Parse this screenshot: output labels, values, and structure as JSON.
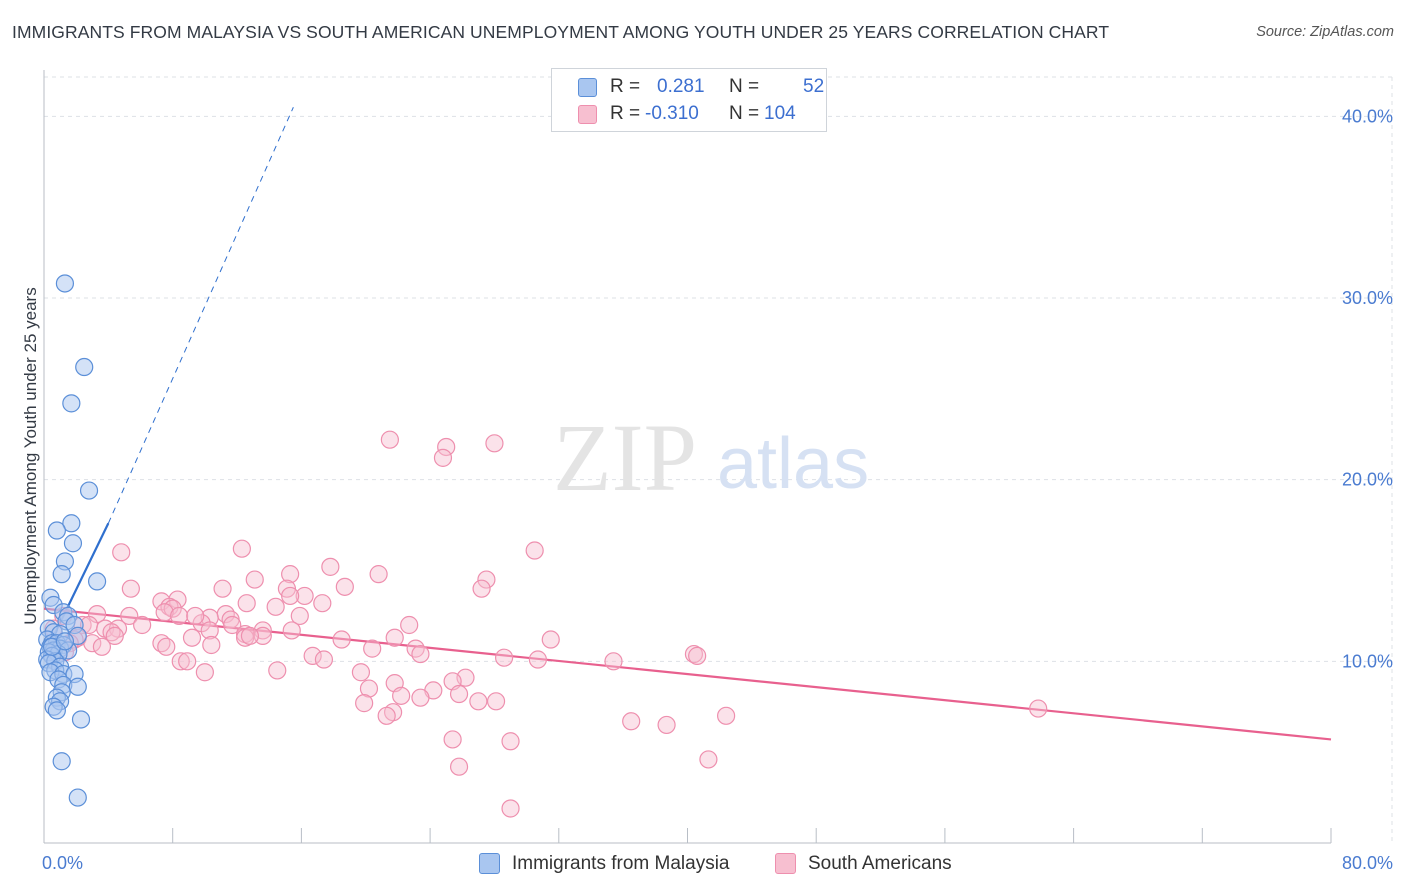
{
  "title": "IMMIGRANTS FROM MALAYSIA VS SOUTH AMERICAN UNEMPLOYMENT AMONG YOUTH UNDER 25 YEARS CORRELATION CHART",
  "source": "Source: ZipAtlas.com",
  "watermark": {
    "zip": "ZIP",
    "atlas": "atlas"
  },
  "legend": {
    "malaysia": {
      "r_label": "R =",
      "r_value": "0.281",
      "n_label": "N =",
      "n_value": "52"
    },
    "south_american": {
      "r_label": "R =",
      "r_value": "-0.310",
      "n_label": "N =",
      "n_value": "104"
    }
  },
  "colors": {
    "malaysia_fill": "#a9c6f0",
    "malaysia_stroke": "#5b8fd8",
    "malaysia_line": "#2f6fce",
    "south_fill": "#f7bfd0",
    "south_stroke": "#ee8fae",
    "south_line": "#e8608e",
    "axis_text": "#4a7bd0",
    "grid": "#dde1e6"
  },
  "chart_data": {
    "type": "scatter",
    "title": "IMMIGRANTS FROM MALAYSIA VS SOUTH AMERICAN UNEMPLOYMENT AMONG YOUTH UNDER 25 YEARS CORRELATION CHART",
    "xlabel": "",
    "ylabel": "Unemployment Among Youth under 25 years",
    "xlim": [
      0,
      80
    ],
    "ylim": [
      0,
      42
    ],
    "x_tick_labels": [
      "0.0%",
      "80.0%"
    ],
    "y_ticks": [
      10,
      20,
      30,
      40
    ],
    "y_tick_labels": [
      "10.0%",
      "20.0%",
      "30.0%",
      "40.0%"
    ],
    "legend_position": "bottom-center",
    "series": [
      {
        "name": "Immigrants from Malaysia",
        "r": 0.281,
        "n": 52,
        "trend": {
          "x0": 0.0,
          "y0": 10.3,
          "x1": 4.0,
          "y1": 17.6,
          "dashed_to_x": 15.5,
          "dashed_to_y": 40.5
        },
        "points": [
          [
            1.3,
            30.8
          ],
          [
            2.5,
            26.2
          ],
          [
            1.7,
            24.2
          ],
          [
            2.8,
            19.4
          ],
          [
            1.7,
            17.6
          ],
          [
            0.8,
            17.2
          ],
          [
            1.8,
            16.5
          ],
          [
            1.3,
            15.5
          ],
          [
            1.1,
            14.8
          ],
          [
            3.3,
            14.4
          ],
          [
            0.4,
            13.5
          ],
          [
            0.6,
            13.1
          ],
          [
            1.2,
            12.7
          ],
          [
            1.5,
            12.5
          ],
          [
            1.4,
            12.2
          ],
          [
            1.9,
            12.0
          ],
          [
            0.3,
            11.8
          ],
          [
            0.6,
            11.6
          ],
          [
            1.0,
            11.5
          ],
          [
            2.1,
            11.4
          ],
          [
            0.2,
            11.2
          ],
          [
            0.5,
            11.0
          ],
          [
            0.8,
            11.0
          ],
          [
            1.2,
            10.9
          ],
          [
            0.4,
            10.8
          ],
          [
            1.0,
            10.7
          ],
          [
            0.6,
            10.6
          ],
          [
            1.5,
            10.6
          ],
          [
            0.3,
            10.5
          ],
          [
            0.9,
            10.4
          ],
          [
            0.5,
            10.3
          ],
          [
            0.2,
            10.1
          ],
          [
            0.7,
            10.0
          ],
          [
            0.3,
            9.9
          ],
          [
            1.0,
            9.7
          ],
          [
            0.7,
            9.5
          ],
          [
            0.4,
            9.4
          ],
          [
            1.2,
            9.3
          ],
          [
            1.9,
            9.3
          ],
          [
            0.9,
            9.0
          ],
          [
            1.2,
            8.7
          ],
          [
            2.1,
            8.6
          ],
          [
            1.1,
            8.3
          ],
          [
            0.8,
            8.0
          ],
          [
            1.0,
            7.8
          ],
          [
            0.6,
            7.5
          ],
          [
            0.8,
            7.3
          ],
          [
            2.3,
            6.8
          ],
          [
            1.1,
            4.5
          ],
          [
            2.1,
            2.5
          ],
          [
            0.5,
            10.8
          ],
          [
            1.3,
            11.1
          ]
        ]
      },
      {
        "name": "South Americans",
        "r": -0.31,
        "n": 104,
        "trend": {
          "x0": 0.0,
          "y0": 12.9,
          "x1": 80.0,
          "y1": 5.7
        },
        "points": [
          [
            21.5,
            22.2
          ],
          [
            25.0,
            21.8
          ],
          [
            28.0,
            22.0
          ],
          [
            24.8,
            21.2
          ],
          [
            12.3,
            16.2
          ],
          [
            30.5,
            16.1
          ],
          [
            4.8,
            16.0
          ],
          [
            17.8,
            15.2
          ],
          [
            15.3,
            14.8
          ],
          [
            20.8,
            14.8
          ],
          [
            13.1,
            14.5
          ],
          [
            27.5,
            14.5
          ],
          [
            18.7,
            14.1
          ],
          [
            5.4,
            14.0
          ],
          [
            11.1,
            14.0
          ],
          [
            15.1,
            14.0
          ],
          [
            27.2,
            14.0
          ],
          [
            16.2,
            13.6
          ],
          [
            8.3,
            13.4
          ],
          [
            7.3,
            13.3
          ],
          [
            12.6,
            13.2
          ],
          [
            17.3,
            13.2
          ],
          [
            7.8,
            13.0
          ],
          [
            14.4,
            13.0
          ],
          [
            8.0,
            12.9
          ],
          [
            7.5,
            12.7
          ],
          [
            3.3,
            12.6
          ],
          [
            11.3,
            12.6
          ],
          [
            1.2,
            12.5
          ],
          [
            5.3,
            12.5
          ],
          [
            8.4,
            12.5
          ],
          [
            15.9,
            12.5
          ],
          [
            10.3,
            12.4
          ],
          [
            11.6,
            12.3
          ],
          [
            9.8,
            12.1
          ],
          [
            2.4,
            12.0
          ],
          [
            2.8,
            12.0
          ],
          [
            6.1,
            12.0
          ],
          [
            11.7,
            12.0
          ],
          [
            22.7,
            12.0
          ],
          [
            0.6,
            11.8
          ],
          [
            3.8,
            11.8
          ],
          [
            4.6,
            11.8
          ],
          [
            10.3,
            11.7
          ],
          [
            13.6,
            11.7
          ],
          [
            15.4,
            11.7
          ],
          [
            4.2,
            11.6
          ],
          [
            12.5,
            11.5
          ],
          [
            4.4,
            11.4
          ],
          [
            13.6,
            11.4
          ],
          [
            2.1,
            11.3
          ],
          [
            9.2,
            11.3
          ],
          [
            12.5,
            11.3
          ],
          [
            21.8,
            11.3
          ],
          [
            1.9,
            11.2
          ],
          [
            18.5,
            11.2
          ],
          [
            31.5,
            11.2
          ],
          [
            1.6,
            11.0
          ],
          [
            3.0,
            11.0
          ],
          [
            7.3,
            11.0
          ],
          [
            10.4,
            10.9
          ],
          [
            3.6,
            10.8
          ],
          [
            7.6,
            10.8
          ],
          [
            20.4,
            10.7
          ],
          [
            23.1,
            10.7
          ],
          [
            1.3,
            10.5
          ],
          [
            23.4,
            10.4
          ],
          [
            16.7,
            10.3
          ],
          [
            40.4,
            10.4
          ],
          [
            40.6,
            10.3
          ],
          [
            28.6,
            10.2
          ],
          [
            30.7,
            10.1
          ],
          [
            17.4,
            10.1
          ],
          [
            35.4,
            10.0
          ],
          [
            8.5,
            10.0
          ],
          [
            8.9,
            10.0
          ],
          [
            14.5,
            9.5
          ],
          [
            10.0,
            9.4
          ],
          [
            19.7,
            9.4
          ],
          [
            26.2,
            9.1
          ],
          [
            25.4,
            8.9
          ],
          [
            21.8,
            8.8
          ],
          [
            20.2,
            8.5
          ],
          [
            24.2,
            8.4
          ],
          [
            25.8,
            8.2
          ],
          [
            22.2,
            8.1
          ],
          [
            23.4,
            8.0
          ],
          [
            28.1,
            7.8
          ],
          [
            27.0,
            7.8
          ],
          [
            19.9,
            7.7
          ],
          [
            61.8,
            7.4
          ],
          [
            21.7,
            7.2
          ],
          [
            21.3,
            7.0
          ],
          [
            42.4,
            7.0
          ],
          [
            36.5,
            6.7
          ],
          [
            38.7,
            6.5
          ],
          [
            25.4,
            5.7
          ],
          [
            29.0,
            5.6
          ],
          [
            41.3,
            4.6
          ],
          [
            25.8,
            4.2
          ],
          [
            29.0,
            1.9
          ],
          [
            15.3,
            13.6
          ],
          [
            12.8,
            11.4
          ],
          [
            9.4,
            12.5
          ]
        ]
      }
    ]
  },
  "bottom_legend": [
    "Immigrants from Malaysia",
    "South Americans"
  ]
}
